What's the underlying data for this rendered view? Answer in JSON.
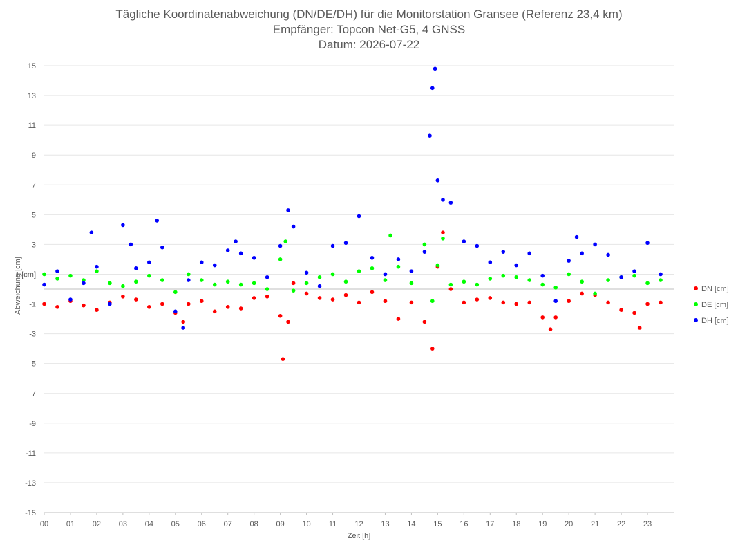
{
  "chart_data": {
    "type": "scatter",
    "title": "Tägliche Koordinatenabweichung (DN/DE/DH) für die Monitorstation Gransee (Referenz 23,4 km)",
    "subtitle": "Empfänger: Topcon Net-G5, 4 GNSS",
    "date_line": "Datum: 2026-07-22",
    "xlabel": "Zeit [h]",
    "ylabel": "Abweichung [cm]",
    "xlim": [
      0,
      24
    ],
    "ylim": [
      -15,
      15
    ],
    "x_ticks": [
      "00",
      "01",
      "02",
      "03",
      "04",
      "05",
      "06",
      "07",
      "08",
      "09",
      "10",
      "11",
      "12",
      "13",
      "14",
      "15",
      "16",
      "17",
      "18",
      "19",
      "20",
      "21",
      "22",
      "23"
    ],
    "y_ticks": [
      15,
      13,
      11,
      9,
      7,
      5,
      3,
      1,
      -1,
      -3,
      -5,
      -7,
      -9,
      -11,
      -13,
      -15
    ],
    "y_tick_labels": [
      "15",
      "13",
      "11",
      "9",
      "7",
      "5",
      "3",
      "1 [cm]",
      "-1",
      "-3",
      "-5",
      "-7",
      "-9",
      "-11",
      "-13",
      "-15"
    ],
    "grid": "horizontal",
    "legend_position": "right",
    "series": [
      {
        "name": "DN [cm]",
        "color": "#ff0000",
        "x": [
          0.0,
          0.5,
          1.0,
          1.5,
          2.0,
          2.5,
          3.0,
          3.5,
          4.0,
          4.5,
          5.0,
          5.3,
          5.5,
          6.0,
          6.5,
          7.0,
          7.5,
          8.0,
          8.5,
          9.0,
          9.1,
          9.3,
          9.5,
          10.0,
          10.5,
          11.0,
          11.5,
          12.0,
          12.5,
          13.0,
          13.5,
          14.0,
          14.5,
          14.8,
          15.0,
          15.2,
          15.5,
          16.0,
          16.5,
          17.0,
          17.5,
          18.0,
          18.5,
          19.0,
          19.3,
          19.5,
          20.0,
          20.5,
          21.0,
          21.5,
          22.0,
          22.5,
          22.7,
          23.0,
          23.5
        ],
        "y": [
          -1.0,
          -1.2,
          -0.8,
          -1.1,
          -1.4,
          -0.9,
          -0.5,
          -0.7,
          -1.2,
          -1.0,
          -1.6,
          -2.2,
          -1.0,
          -0.8,
          -1.5,
          -1.2,
          -1.3,
          -0.6,
          -0.5,
          -1.8,
          -4.7,
          -2.2,
          0.4,
          -0.3,
          -0.6,
          -0.7,
          -0.4,
          -0.9,
          -0.2,
          -0.8,
          -2.0,
          -0.9,
          -2.2,
          -4.0,
          1.5,
          3.8,
          0.0,
          -0.9,
          -0.7,
          -0.6,
          -0.9,
          -1.0,
          -0.9,
          -1.9,
          -2.7,
          -1.9,
          -0.8,
          -0.3,
          -0.4,
          -0.9,
          -1.4,
          -1.6,
          -2.6,
          -1.0,
          -0.9
        ]
      },
      {
        "name": "DE [cm]",
        "color": "#00ff00",
        "x": [
          0.0,
          0.5,
          1.0,
          1.5,
          2.0,
          2.5,
          3.0,
          3.5,
          4.0,
          4.5,
          5.0,
          5.5,
          6.0,
          6.5,
          7.0,
          7.5,
          8.0,
          8.5,
          9.0,
          9.2,
          9.5,
          10.0,
          10.5,
          11.0,
          11.5,
          12.0,
          12.5,
          13.0,
          13.2,
          13.5,
          14.0,
          14.5,
          14.8,
          15.0,
          15.2,
          15.5,
          16.0,
          16.5,
          17.0,
          17.5,
          18.0,
          18.5,
          19.0,
          19.5,
          20.0,
          20.5,
          21.0,
          21.5,
          22.0,
          22.5,
          23.0,
          23.5
        ],
        "y": [
          1.0,
          0.7,
          0.9,
          0.6,
          1.2,
          0.4,
          0.2,
          0.5,
          0.9,
          0.6,
          -0.2,
          1.0,
          0.6,
          0.3,
          0.5,
          0.3,
          0.4,
          0.0,
          2.0,
          3.2,
          -0.1,
          0.4,
          0.8,
          1.0,
          0.5,
          1.2,
          1.4,
          0.6,
          3.6,
          1.5,
          0.4,
          3.0,
          -0.8,
          1.6,
          3.4,
          0.3,
          0.5,
          0.3,
          0.7,
          0.9,
          0.8,
          0.6,
          0.3,
          0.1,
          1.0,
          0.5,
          -0.3,
          0.6,
          0.8,
          0.9,
          0.4,
          0.6
        ]
      },
      {
        "name": "DH [cm]",
        "color": "#0000ff",
        "x": [
          0.0,
          0.5,
          1.0,
          1.5,
          1.8,
          2.0,
          2.5,
          3.0,
          3.3,
          3.5,
          4.0,
          4.3,
          4.5,
          5.0,
          5.3,
          5.5,
          6.0,
          6.5,
          7.0,
          7.3,
          7.5,
          8.0,
          8.5,
          9.0,
          9.3,
          9.5,
          10.0,
          10.5,
          11.0,
          11.5,
          12.0,
          12.5,
          13.0,
          13.5,
          14.0,
          14.5,
          14.7,
          14.8,
          14.9,
          15.0,
          15.2,
          15.5,
          16.0,
          16.5,
          17.0,
          17.5,
          18.0,
          18.5,
          19.0,
          19.5,
          20.0,
          20.3,
          20.5,
          21.0,
          21.5,
          22.0,
          22.5,
          23.0,
          23.5
        ],
        "y": [
          0.3,
          1.2,
          -0.7,
          0.4,
          3.8,
          1.5,
          -1.0,
          4.3,
          3.0,
          1.4,
          1.8,
          4.6,
          2.8,
          -1.5,
          -2.6,
          0.6,
          1.8,
          1.6,
          2.6,
          3.2,
          2.4,
          2.1,
          0.8,
          2.9,
          5.3,
          4.2,
          1.1,
          0.2,
          2.9,
          3.1,
          4.9,
          2.1,
          1.0,
          2.0,
          1.2,
          2.5,
          10.3,
          13.5,
          14.8,
          7.3,
          6.0,
          5.8,
          3.2,
          2.9,
          1.8,
          2.5,
          1.6,
          2.4,
          0.9,
          -0.8,
          1.9,
          3.5,
          2.4,
          3.0,
          2.3,
          0.8,
          1.2,
          3.1,
          1.0
        ]
      }
    ]
  }
}
